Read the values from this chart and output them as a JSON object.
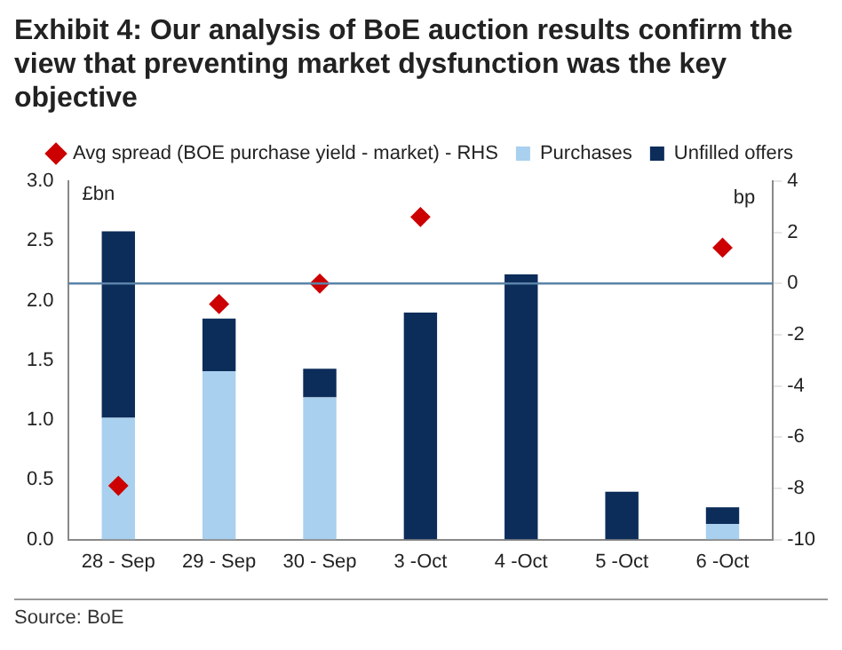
{
  "chart_data": {
    "type": "bar",
    "title": "Exhibit 4: Our analysis of BoE auction results confirm the view that preventing market dysfunction was the key objective",
    "categories": [
      "28 - Sep",
      "29 - Sep",
      "30 - Sep",
      "3 -Oct",
      "4 -Oct",
      "5 -Oct",
      "6 -Oct"
    ],
    "stacked": true,
    "series": [
      {
        "name": "Purchases",
        "color": "#a9d0ee",
        "values": [
          1.02,
          1.41,
          1.19,
          0,
          0,
          0,
          0.13
        ]
      },
      {
        "name": "Unfilled offers",
        "color": "#0c2d5a",
        "values": [
          1.56,
          0.44,
          0.24,
          1.9,
          2.22,
          0.4,
          0.14
        ]
      },
      {
        "name": "Avg spread (BOE purchase yield - market) - RHS",
        "type": "scatter",
        "axis": "y2",
        "marker": "diamond",
        "color": "#cc0000",
        "x": [
          "28 - Sep",
          "29 - Sep",
          "30 - Sep",
          "3 -Oct",
          "4 -Oct",
          "5 -Oct",
          "6 -Oct"
        ],
        "values": [
          -7.9,
          -0.8,
          0,
          2.6,
          null,
          null,
          1.4
        ]
      }
    ],
    "ylabel": "£bn",
    "y2label": "bp",
    "ylim": [
      0,
      3
    ],
    "yticks": [
      {
        "value": 0,
        "label": "0.0"
      },
      {
        "value": 0.5,
        "label": "0.5"
      },
      {
        "value": 1,
        "label": "1.0"
      },
      {
        "value": 1.5,
        "label": "1.5"
      },
      {
        "value": 2,
        "label": "2.0"
      },
      {
        "value": 2.5,
        "label": "2.5"
      },
      {
        "value": 3,
        "label": "3.0"
      }
    ],
    "y2lim": [
      -10,
      4
    ],
    "y2ticks": [
      -10,
      -8,
      -6,
      -4,
      -2,
      0,
      2,
      4
    ],
    "ref_lines": [
      {
        "axis": "y2",
        "value": 0,
        "color": "#5b83a8"
      }
    ],
    "legend": "top",
    "grid": false,
    "annotations": [
      "Source: BoE"
    ]
  }
}
